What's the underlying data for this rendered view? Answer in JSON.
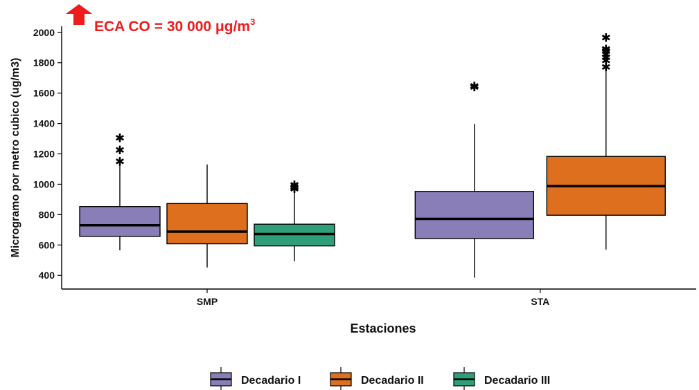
{
  "annotation": {
    "text": "ECA CO = 30 000 μg/m",
    "superscript": "3",
    "color": "#ee1c1c",
    "arrow": "up-arrow-icon"
  },
  "chart_data": {
    "type": "boxplot",
    "xlabel": "Estaciones",
    "ylabel": "Microgramo por metro cubico (ug/m3)",
    "ylim": [
      310,
      2040
    ],
    "yticks": [
      400,
      600,
      800,
      1000,
      1200,
      1400,
      1600,
      1800,
      2000
    ],
    "categories": [
      "SMP",
      "STA"
    ],
    "legend_position": "bottom",
    "series": [
      {
        "name": "Decadario I",
        "color": "#8a7eb9",
        "boxes": [
          {
            "category": "SMP",
            "min": 565,
            "q1": 657,
            "median": 730,
            "q3": 853,
            "max": 1140,
            "outliers": [
              1155,
              1230,
              1310
            ]
          },
          {
            "category": "STA",
            "min": 385,
            "q1": 643,
            "median": 772,
            "q3": 953,
            "max": 1397,
            "outliers": [
              1645,
              1650
            ]
          }
        ]
      },
      {
        "name": "Decadario II",
        "color": "#de6f1f",
        "boxes": [
          {
            "category": "SMP",
            "min": 452,
            "q1": 608,
            "median": 688,
            "q3": 873,
            "max": 1130,
            "outliers": []
          },
          {
            "category": "STA",
            "min": 570,
            "q1": 796,
            "median": 988,
            "q3": 1183,
            "max": 1765,
            "outliers": [
              1775,
              1820,
              1840,
              1860,
              1880,
              1895,
              1970
            ]
          }
        ]
      },
      {
        "name": "Decadario III",
        "color": "#2f9f79",
        "boxes": [
          {
            "category": "SMP",
            "min": 493,
            "q1": 594,
            "median": 672,
            "q3": 737,
            "max": 968,
            "outliers": [
              975,
              985,
              1000
            ]
          }
        ]
      }
    ]
  }
}
